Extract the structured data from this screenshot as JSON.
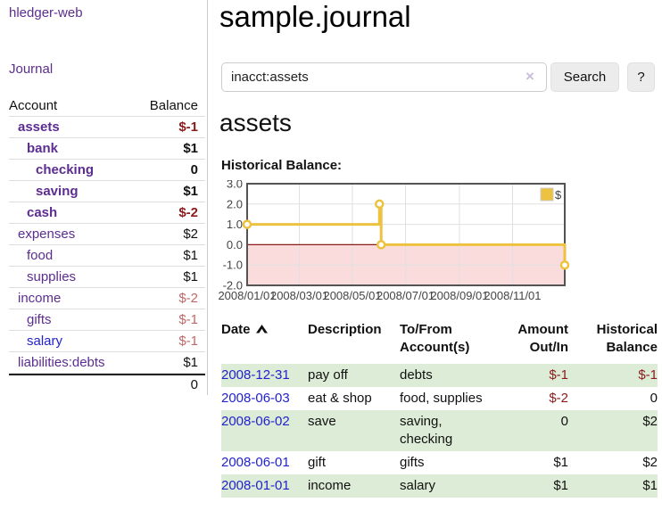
{
  "app": {
    "brand": "hledger-web",
    "nav_journal": "Journal"
  },
  "colors": {
    "link_purple": "#5c2d91",
    "link_blue": "#2222cc",
    "negative_strong": "#8b1a1a",
    "negative_soft": "#c06868",
    "row_green": "#ddecd7",
    "series_yellow": "#EDC240"
  },
  "sidebar": {
    "header": {
      "account": "Account",
      "balance": "Balance"
    },
    "accounts": [
      {
        "name": "assets",
        "indent": 0,
        "strong": true,
        "balance": "$-1"
      },
      {
        "name": "bank",
        "indent": 1,
        "strong": true,
        "balance": "$1"
      },
      {
        "name": "checking",
        "indent": 2,
        "strong": true,
        "balance": "0"
      },
      {
        "name": "saving",
        "indent": 2,
        "strong": true,
        "balance": "$1"
      },
      {
        "name": "cash",
        "indent": 1,
        "strong": true,
        "balance": "$-2"
      },
      {
        "name": "expenses",
        "indent": 0,
        "strong": false,
        "balance": "$2"
      },
      {
        "name": "food",
        "indent": 1,
        "strong": false,
        "balance": "$1"
      },
      {
        "name": "supplies",
        "indent": 1,
        "strong": false,
        "balance": "$1"
      },
      {
        "name": "income",
        "indent": 0,
        "strong": false,
        "balance": "$-2"
      },
      {
        "name": "gifts",
        "indent": 1,
        "strong": false,
        "balance": "$-1"
      },
      {
        "name": "salary",
        "indent": 1,
        "strong": false,
        "balance": "$-1",
        "link": "blue"
      },
      {
        "name": "liabilities:debts",
        "indent": 0,
        "strong": false,
        "balance": "$1"
      }
    ],
    "total": "0"
  },
  "header": {
    "title": "sample.journal"
  },
  "search": {
    "value": "inacct:assets",
    "clear_icon": "×",
    "button_label": "Search",
    "help_label": "?"
  },
  "register": {
    "heading": "assets",
    "chart_label": "Historical Balance:",
    "table": {
      "headers": [
        "Date",
        "Description",
        "To/From Account(s)",
        "Amount Out/In",
        "Historical Balance"
      ],
      "sort": {
        "column": "Date",
        "direction": "ascending"
      },
      "rows": [
        {
          "date": "2008-12-31",
          "description": "pay off",
          "accounts": "debts",
          "amount": "$-1",
          "balance": "$-1"
        },
        {
          "date": "2008-06-03",
          "description": "eat & shop",
          "accounts": "food, supplies",
          "amount": "$-2",
          "balance": "0"
        },
        {
          "date": "2008-06-02",
          "description": "save",
          "accounts": "saving, checking",
          "amount": "0",
          "balance": "$2"
        },
        {
          "date": "2008-06-01",
          "description": "gift",
          "accounts": "gifts",
          "amount": "$1",
          "balance": "$2"
        },
        {
          "date": "2008-01-01",
          "description": "income",
          "accounts": "salary",
          "amount": "$1",
          "balance": "$1"
        }
      ]
    }
  },
  "chart_data": {
    "type": "line",
    "step": true,
    "title": "Historical Balance",
    "series": [
      {
        "name": "$",
        "color": "#EDC240",
        "points": [
          [
            "2008-01-01",
            1
          ],
          [
            "2008-06-01",
            2
          ],
          [
            "2008-06-03",
            0
          ],
          [
            "2008-12-31",
            -1
          ]
        ]
      }
    ],
    "x_ticks": [
      "2008/01/01",
      "2008/03/01",
      "2008/05/01",
      "2008/07/01",
      "2008/09/01",
      "2008/11/01"
    ],
    "y_ticks": [
      "3.0",
      "2.0",
      "1.0",
      "0.0",
      "-1.0",
      "-2.0"
    ],
    "ylim": [
      -2,
      3
    ],
    "xlim": [
      "2008-01-01",
      "2008-12-31"
    ],
    "grid": true,
    "legend_position": "top-right",
    "negative_region_fill": "#fbdcdc",
    "zero_line_color": "#8b1a1a"
  }
}
